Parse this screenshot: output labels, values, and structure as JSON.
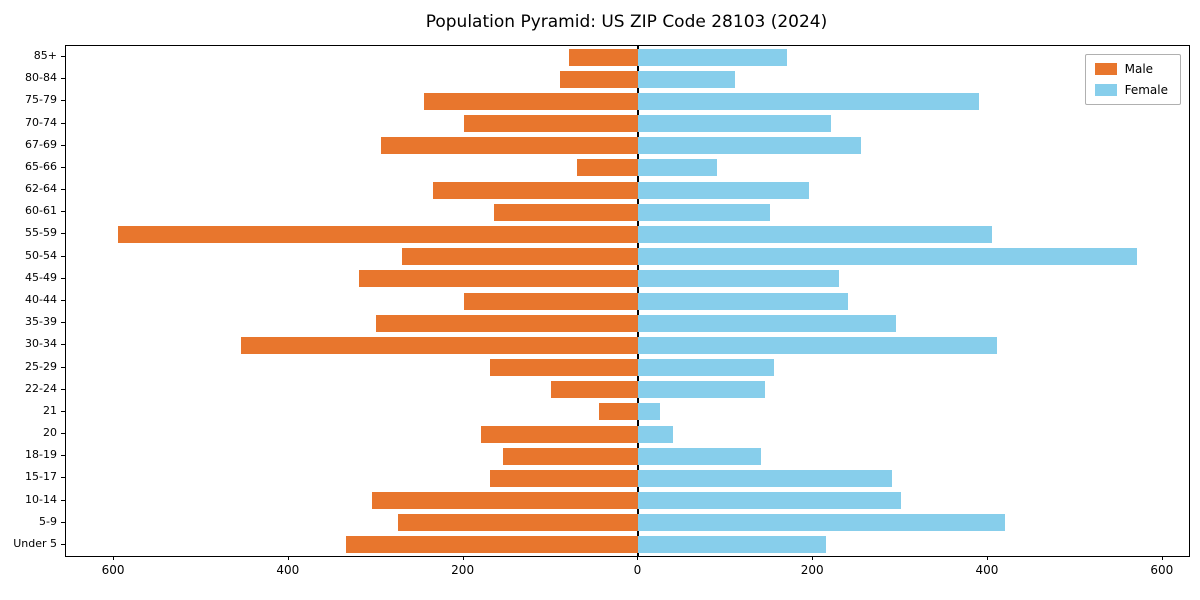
{
  "title": "Population Pyramid: US ZIP Code 28103 (2024)",
  "legend": {
    "male_label": "Male",
    "female_label": "Female"
  },
  "colors": {
    "male": "#E8762D",
    "female": "#87CEEB",
    "axis": "#000000",
    "background": "#FFFFFF"
  },
  "chart_data": {
    "type": "bar",
    "orientation": "horizontal",
    "subtype": "population-pyramid",
    "title": "Population Pyramid: US ZIP Code 28103 (2024)",
    "categories": [
      "85+",
      "80-84",
      "75-79",
      "70-74",
      "67-69",
      "65-66",
      "62-64",
      "60-61",
      "55-59",
      "50-54",
      "45-49",
      "40-44",
      "35-39",
      "30-34",
      "25-29",
      "22-24",
      "21",
      "20",
      "18-19",
      "15-17",
      "10-14",
      "5-9",
      "Under 5"
    ],
    "series": [
      {
        "name": "Male",
        "color": "#E8762D",
        "side": "left",
        "values": [
          80,
          90,
          245,
          200,
          295,
          70,
          235,
          165,
          595,
          270,
          320,
          200,
          300,
          455,
          170,
          100,
          45,
          180,
          155,
          170,
          305,
          275,
          335
        ]
      },
      {
        "name": "Female",
        "color": "#87CEEB",
        "side": "right",
        "values": [
          170,
          110,
          390,
          220,
          255,
          90,
          195,
          150,
          405,
          570,
          230,
          240,
          295,
          410,
          155,
          145,
          25,
          40,
          140,
          290,
          300,
          420,
          215
        ]
      }
    ],
    "x_ticks": [
      -600,
      -400,
      -200,
      0,
      200,
      400,
      600
    ],
    "x_tick_labels": [
      "600",
      "400",
      "200",
      "0",
      "200",
      "400",
      "600"
    ],
    "xlim": [
      -655,
      630
    ],
    "grid": false,
    "legend_position": "upper right"
  }
}
